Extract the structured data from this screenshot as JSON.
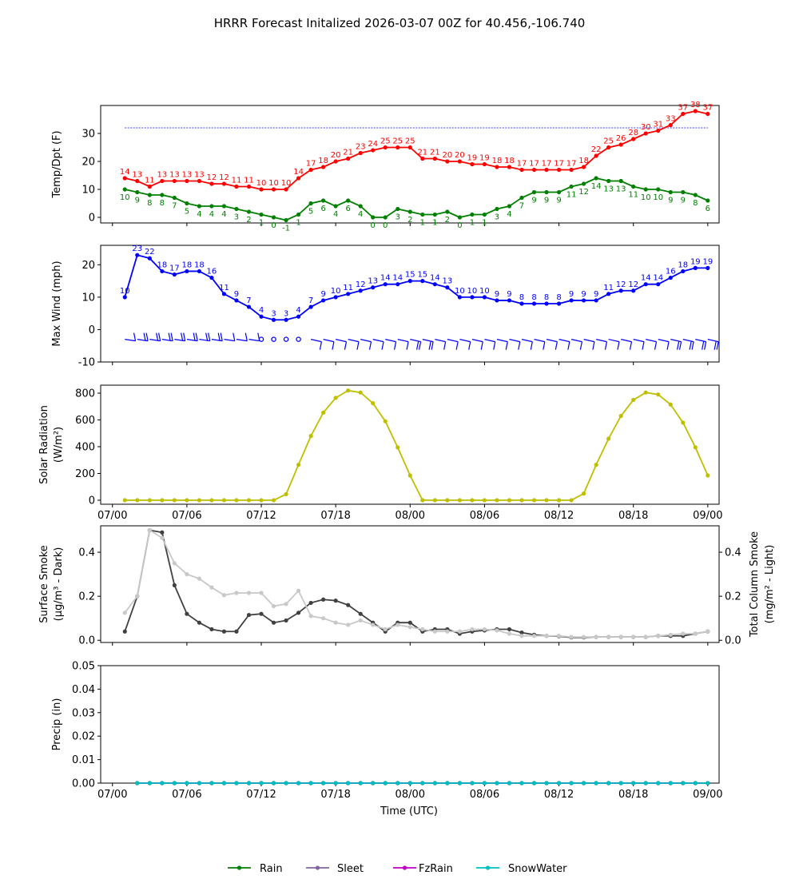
{
  "title": "HRRR Forecast Initalized 2026-03-07 00Z for 40.456,-106.740",
  "x_tick_labels": [
    "07/00",
    "07/06",
    "07/12",
    "07/18",
    "08/00",
    "08/06",
    "08/12",
    "08/18",
    "09/00"
  ],
  "x_axis_label": "Time (UTC)",
  "chart_data": [
    {
      "id": "temp",
      "type": "line",
      "ylabel": "Temp/Dpt (F)",
      "ylim": [
        -2,
        40
      ],
      "yticks": [
        0,
        10,
        20,
        30
      ],
      "freezing_line": 32,
      "x_hours": {
        "start": 1,
        "end": 48
      },
      "series": [
        {
          "name": "Temperature",
          "color": "#ff0000",
          "values": [
            14,
            13,
            11,
            13,
            13,
            13,
            13,
            12,
            12,
            11,
            11,
            10,
            10,
            10,
            14,
            17,
            18,
            20,
            21,
            23,
            24,
            25,
            25,
            25,
            21,
            21,
            20,
            20,
            19,
            19,
            18,
            18,
            17,
            17,
            17,
            17,
            17,
            18,
            22,
            25,
            26,
            28,
            30,
            31,
            33,
            37,
            38,
            37
          ],
          "labels": [
            "14",
            "13",
            "11",
            "13",
            "13",
            "13",
            "13",
            "12",
            "12",
            "11",
            "11",
            "10",
            "10",
            "10",
            "14",
            "17",
            "18",
            "20",
            "21",
            "23",
            "24",
            "25",
            "25",
            "25",
            "21",
            "21",
            "20",
            "20",
            "19",
            "19",
            "18",
            "18",
            "17",
            "17",
            "17",
            "17",
            "17",
            "18",
            "22",
            "25",
            "26",
            "28",
            "30",
            "31",
            "33",
            "37",
            "38",
            "37"
          ]
        },
        {
          "name": "Dewpoint",
          "color": "#008000",
          "values": [
            10,
            9,
            8,
            8,
            7,
            5,
            4,
            4,
            4,
            3,
            2,
            1,
            0,
            -1,
            1,
            5,
            6,
            4,
            6,
            4,
            0,
            0,
            3,
            2,
            1,
            1,
            2,
            0,
            1,
            1,
            3,
            4,
            7,
            9,
            9,
            9,
            11,
            12,
            14,
            13,
            13,
            11,
            10,
            10,
            9,
            9,
            8,
            6
          ],
          "labels": [
            "10",
            "9",
            "8",
            "8",
            "7",
            "5",
            "4",
            "4",
            "4",
            "3",
            "2",
            "1",
            "0",
            "-1",
            "1",
            "5",
            "6",
            "4",
            "6",
            "4",
            "0",
            "0",
            "3",
            "2",
            "1",
            "1",
            "2",
            "0",
            "1",
            "1",
            "3",
            "4",
            "7",
            "9",
            "9",
            "9",
            "11",
            "12",
            "14",
            "13",
            "13",
            "11",
            "10",
            "10",
            "9",
            "9",
            "8",
            "6"
          ]
        }
      ]
    },
    {
      "id": "wind",
      "type": "line",
      "ylabel": "Max Wind (mph)",
      "ylim": [
        -10,
        26
      ],
      "yticks": [
        -10,
        0,
        10,
        20
      ],
      "x_hours": {
        "start": 1,
        "end": 48
      },
      "series": [
        {
          "name": "Max Wind",
          "color": "#0000ff",
          "values": [
            10,
            23,
            22,
            18,
            17,
            18,
            18,
            16,
            11,
            9,
            7,
            4,
            3,
            3,
            4,
            7,
            9,
            10,
            11,
            12,
            13,
            14,
            14,
            15,
            15,
            14,
            13,
            10,
            10,
            10,
            9,
            9,
            8,
            8,
            8,
            8,
            9,
            9,
            9,
            11,
            12,
            12,
            14,
            14,
            16,
            18,
            19,
            19
          ],
          "labels": [
            "10",
            "23",
            "22",
            "18",
            "17",
            "18",
            "18",
            "16",
            "11",
            "9",
            "7",
            "4",
            "3",
            "3",
            "4",
            "7",
            "9",
            "10",
            "11",
            "12",
            "13",
            "14",
            "14",
            "15",
            "15",
            "14",
            "13",
            "10",
            "10",
            "10",
            "9",
            "9",
            "8",
            "8",
            "8",
            "8",
            "9",
            "9",
            "9",
            "11",
            "12",
            "12",
            "14",
            "14",
            "16",
            "18",
            "19",
            "19"
          ]
        }
      ],
      "barbs": "wind barbs plotted at y = -3"
    },
    {
      "id": "solar",
      "type": "line",
      "ylabel": "Solar Radiation",
      "ylabel2": "(W/m²)",
      "ylim": [
        -30,
        860
      ],
      "yticks": [
        0,
        200,
        400,
        600,
        800
      ],
      "x_hours": {
        "start": 1,
        "end": 48
      },
      "series": [
        {
          "name": "Solar Radiation",
          "color": "#bfbf00",
          "values": [
            0,
            0,
            0,
            0,
            0,
            0,
            0,
            0,
            0,
            0,
            0,
            0,
            0,
            45,
            265,
            480,
            655,
            765,
            820,
            805,
            725,
            590,
            395,
            185,
            0,
            0,
            0,
            0,
            0,
            0,
            0,
            0,
            0,
            0,
            0,
            0,
            0,
            50,
            265,
            460,
            630,
            750,
            805,
            790,
            715,
            580,
            395,
            185
          ]
        }
      ]
    },
    {
      "id": "smoke",
      "type": "line",
      "ylabel": "Surface Smoke",
      "ylabel2": "(μg/m³ - Dark)",
      "ylabel_right": "Total Column Smoke",
      "ylabel_right2": "(mg/m² - Light)",
      "ylim": [
        -0.01,
        0.52
      ],
      "yticks": [
        0.0,
        0.2,
        0.4
      ],
      "ytick_labels": [
        "0.0",
        "0.2",
        "0.4"
      ],
      "x_hours": {
        "start": 1,
        "end": 48
      },
      "series": [
        {
          "name": "Surface Smoke",
          "color": "#404040",
          "values": [
            0.04,
            0.2,
            0.5,
            0.49,
            0.25,
            0.12,
            0.08,
            0.05,
            0.04,
            0.04,
            0.115,
            0.12,
            0.08,
            0.09,
            0.125,
            0.17,
            0.185,
            0.18,
            0.16,
            0.12,
            0.08,
            0.04,
            0.08,
            0.08,
            0.04,
            0.05,
            0.05,
            0.03,
            0.04,
            0.045,
            0.05,
            0.05,
            0.035,
            0.025,
            0.02,
            0.018,
            0.013,
            0.013,
            0.015,
            0.015,
            0.015,
            0.015,
            0.015,
            0.02,
            0.02,
            0.02,
            0.03,
            0.04
          ]
        },
        {
          "name": "Total Column Smoke",
          "color": "#c8c8c8",
          "values": [
            0.125,
            0.2,
            0.5,
            0.465,
            0.35,
            0.3,
            0.28,
            0.24,
            0.205,
            0.215,
            0.215,
            0.215,
            0.155,
            0.165,
            0.225,
            0.11,
            0.1,
            0.08,
            0.07,
            0.09,
            0.07,
            0.05,
            0.07,
            0.06,
            0.05,
            0.04,
            0.04,
            0.04,
            0.05,
            0.05,
            0.045,
            0.03,
            0.02,
            0.02,
            0.02,
            0.02,
            0.015,
            0.015,
            0.015,
            0.015,
            0.015,
            0.015,
            0.015,
            0.02,
            0.025,
            0.03,
            0.03,
            0.04
          ]
        }
      ]
    },
    {
      "id": "precip",
      "type": "line",
      "ylabel": "Precip (in)",
      "ylim": [
        0,
        0.05
      ],
      "yticks": [
        0.0,
        0.01,
        0.02,
        0.03,
        0.04,
        0.05
      ],
      "ytick_labels": [
        "0.00",
        "0.01",
        "0.02",
        "0.03",
        "0.04",
        "0.05"
      ],
      "x_hours": {
        "start": 2,
        "end": 48
      },
      "series": [
        {
          "name": "Rain",
          "color": "#008000",
          "value": 0
        },
        {
          "name": "Sleet",
          "color": "#8064a0",
          "value": 0
        },
        {
          "name": "FzRain",
          "color": "#c000c0",
          "value": 0
        },
        {
          "name": "SnowWater",
          "color": "#00bfbf",
          "value": 0
        }
      ]
    }
  ],
  "legend": [
    {
      "label": "Rain",
      "color": "#008000"
    },
    {
      "label": "Sleet",
      "color": "#8064a0"
    },
    {
      "label": "FzRain",
      "color": "#c000c0"
    },
    {
      "label": "SnowWater",
      "color": "#00bfbf"
    }
  ]
}
